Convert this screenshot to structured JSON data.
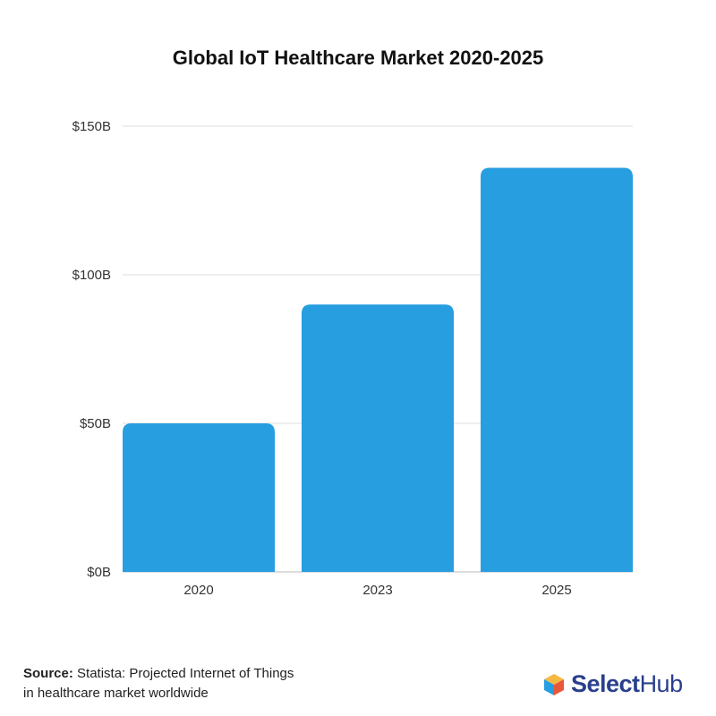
{
  "chart_data": {
    "type": "bar",
    "title": "Global IoT Healthcare Market 2020-2025",
    "categories": [
      "2020",
      "2023",
      "2025"
    ],
    "values": [
      50,
      90,
      136
    ],
    "unit": "$B",
    "ylim": [
      0,
      150
    ],
    "yticks": [
      0,
      50,
      100,
      150
    ],
    "ytick_labels": [
      "$0B",
      "$50B",
      "$100B",
      "$150B"
    ],
    "xlabel": "",
    "ylabel": "",
    "grid": true,
    "bar_color": "#279ee0"
  },
  "source": {
    "label": "Source:",
    "text_line1": "Statista: Projected Internet of Things",
    "text_line2": "in healthcare market worldwide"
  },
  "logo": {
    "text_bold": "Select",
    "text_rest": "Hub"
  }
}
